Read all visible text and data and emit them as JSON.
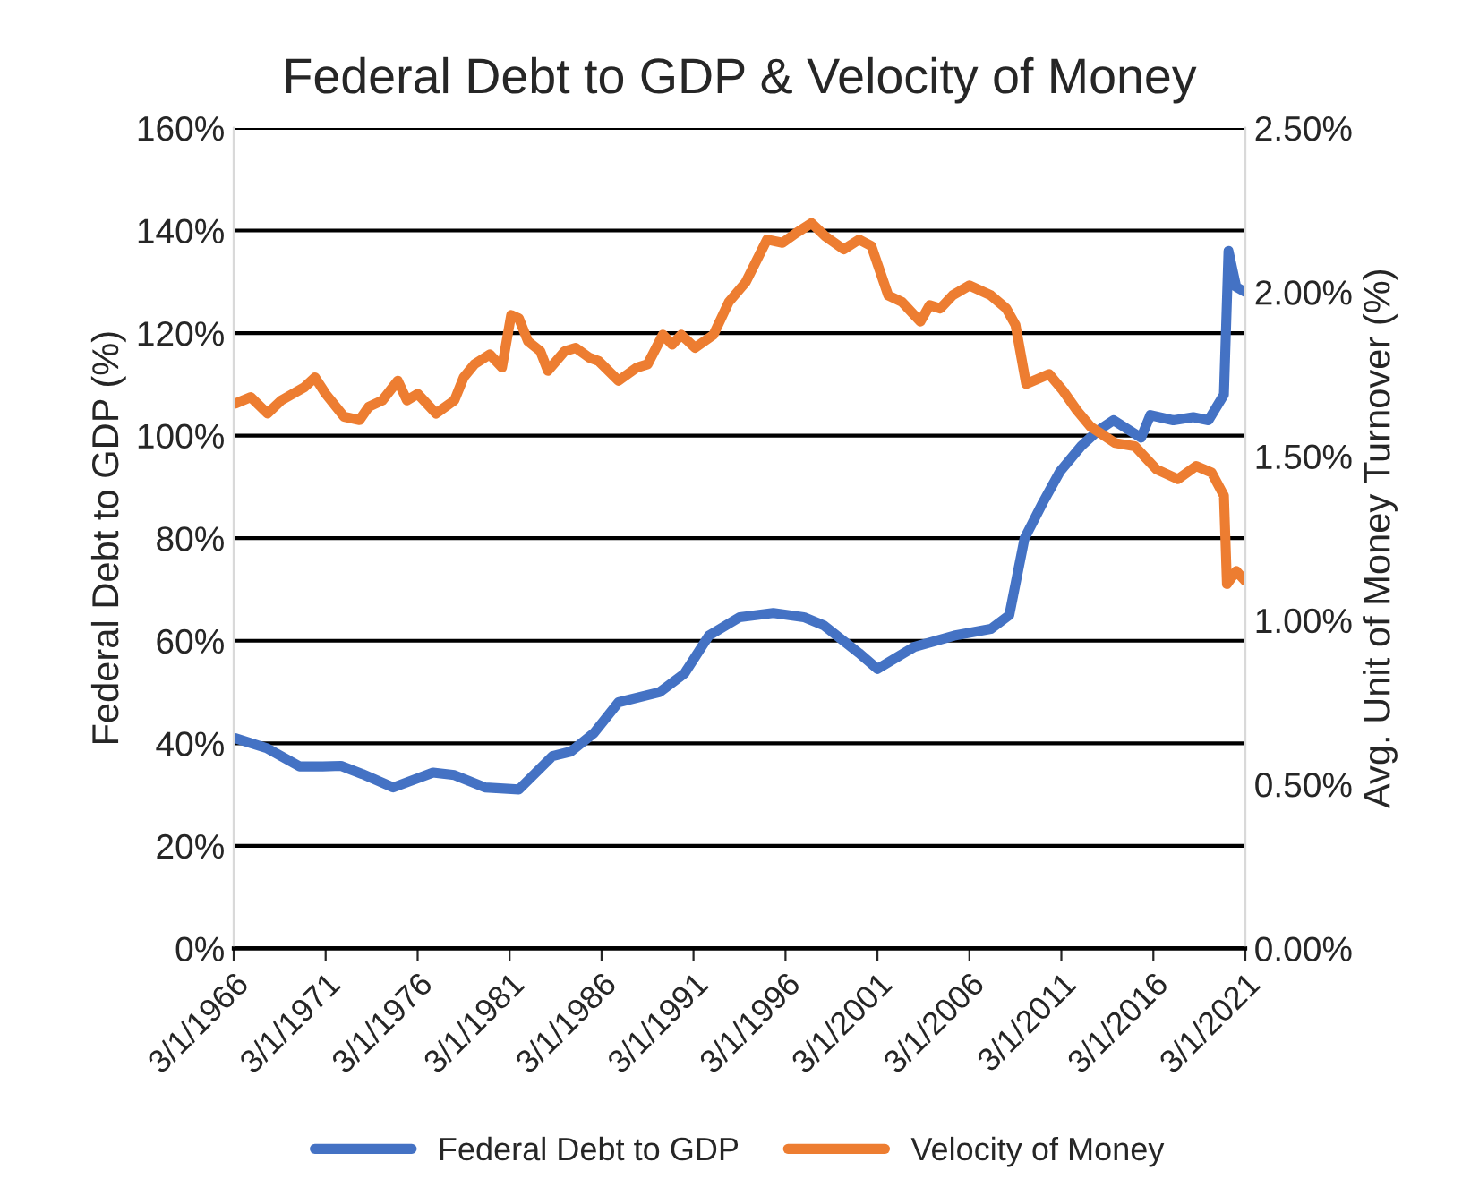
{
  "chart_data": {
    "type": "line",
    "title": "Federal Debt to GDP & Velocity of Money",
    "ylabel": "Federal Debt to GDP (%)",
    "y2label": "Avg. Unit of Money Turnover (%)",
    "xlim": [
      "1966-03-01",
      "2021-03-01"
    ],
    "xticks": [
      {
        "value": "1966-03-01",
        "label": "3/1/1966"
      },
      {
        "value": "1971-03-01",
        "label": "3/1/1971"
      },
      {
        "value": "1976-03-01",
        "label": "3/1/1976"
      },
      {
        "value": "1981-03-01",
        "label": "3/1/1981"
      },
      {
        "value": "1986-03-01",
        "label": "3/1/1986"
      },
      {
        "value": "1991-03-01",
        "label": "3/1/1991"
      },
      {
        "value": "1996-03-01",
        "label": "3/1/1996"
      },
      {
        "value": "2001-03-01",
        "label": "3/1/2001"
      },
      {
        "value": "2006-03-01",
        "label": "3/1/2006"
      },
      {
        "value": "2011-03-01",
        "label": "3/1/2011"
      },
      {
        "value": "2016-03-01",
        "label": "3/1/2016"
      },
      {
        "value": "2021-03-01",
        "label": "3/1/2021"
      }
    ],
    "ylim": [
      0,
      160
    ],
    "yticks": [
      {
        "value": 0,
        "label": "0%"
      },
      {
        "value": 20,
        "label": "20%"
      },
      {
        "value": 40,
        "label": "40%"
      },
      {
        "value": 60,
        "label": "60%"
      },
      {
        "value": 80,
        "label": "80%"
      },
      {
        "value": 100,
        "label": "100%"
      },
      {
        "value": 120,
        "label": "120%"
      },
      {
        "value": 140,
        "label": "140%"
      },
      {
        "value": 160,
        "label": "160%"
      }
    ],
    "y2lim": [
      0,
      2.5
    ],
    "y2ticks": [
      {
        "value": 0,
        "label": "0.00%"
      },
      {
        "value": 0.5,
        "label": "0.50%"
      },
      {
        "value": 1.0,
        "label": "1.00%"
      },
      {
        "value": 1.5,
        "label": "1.50%"
      },
      {
        "value": 2.0,
        "label": "2.00%"
      },
      {
        "value": 2.5,
        "label": "2.50%"
      }
    ],
    "grid": "y",
    "legend": "bottom",
    "marker": "none",
    "line_style": "solid",
    "series": [
      {
        "name": "Federal Debt to GDP",
        "color": "#4472c4",
        "x": [
          "1966-04",
          "1968-01",
          "1969-10",
          "1971-01",
          "1972-01",
          "1973-03",
          "1974-11",
          "1977-01",
          "1978-03",
          "1979-11",
          "1981-09",
          "1983-07",
          "1984-07",
          "1985-10",
          "1987-02",
          "1989-05",
          "1990-09",
          "1992-01",
          "1993-09",
          "1995-07",
          "1997-03",
          "1998-04",
          "2000-03",
          "2001-03",
          "2003-03",
          "2005-05",
          "2007-05",
          "2008-05",
          "2009-03",
          "2010-03",
          "2011-02",
          "2012-04",
          "2013-03",
          "2014-01",
          "2015-07",
          "2016-01",
          "2017-04",
          "2018-05",
          "2019-03",
          "2020-01",
          "2020-04",
          "2020-09",
          "2021-03"
        ],
        "values": [
          41,
          39,
          35.5,
          35.5,
          35.6,
          34,
          31.4,
          34.3,
          33.8,
          31.4,
          31,
          37.5,
          38.4,
          42,
          48,
          50,
          53.6,
          61,
          64.6,
          65.4,
          64.6,
          63,
          57.6,
          54.5,
          58.8,
          61,
          62.3,
          65,
          80,
          87,
          93,
          98,
          101,
          103,
          99.6,
          104,
          103,
          103.6,
          103,
          108,
          136,
          129,
          128
        ]
      },
      {
        "name": "Velocity of Money",
        "color": "#ed7d31",
        "axis": "y2",
        "x": [
          "1966-04",
          "1967-02",
          "1968-01",
          "1968-10",
          "1970-01",
          "1970-08",
          "1971-03",
          "1972-03",
          "1973-01",
          "1973-07",
          "1974-04",
          "1975-02",
          "1975-08",
          "1976-03",
          "1977-03",
          "1978-03",
          "1978-09",
          "1979-04",
          "1980-02",
          "1980-10",
          "1981-04",
          "1981-09",
          "1982-03",
          "1982-11",
          "1983-04",
          "1984-03",
          "1984-10",
          "1985-07",
          "1986-01",
          "1987-02",
          "1988-02",
          "1988-09",
          "1989-07",
          "1990-01",
          "1990-07",
          "1991-04",
          "1992-04",
          "1993-02",
          "1994-01",
          "1995-03",
          "1996-01",
          "1996-10",
          "1997-08",
          "1998-05",
          "1999-05",
          "2000-03",
          "2000-11",
          "2001-10",
          "2002-07",
          "2003-07",
          "2004-01",
          "2004-08",
          "2005-04",
          "2006-03",
          "2007-05",
          "2008-03",
          "2008-09",
          "2009-04",
          "2010-07",
          "2011-04",
          "2012-01",
          "2012-10",
          "2014-02",
          "2015-03",
          "2016-05",
          "2017-07",
          "2018-07",
          "2019-05",
          "2020-01",
          "2020-03",
          "2020-09",
          "2021-03"
        ],
        "values": [
          1.66,
          1.68,
          1.63,
          1.67,
          1.71,
          1.74,
          1.69,
          1.62,
          1.61,
          1.65,
          1.67,
          1.73,
          1.67,
          1.69,
          1.63,
          1.67,
          1.74,
          1.78,
          1.81,
          1.77,
          1.93,
          1.92,
          1.85,
          1.82,
          1.76,
          1.82,
          1.83,
          1.8,
          1.79,
          1.73,
          1.77,
          1.78,
          1.87,
          1.84,
          1.87,
          1.83,
          1.87,
          1.97,
          2.03,
          2.16,
          2.15,
          2.18,
          2.21,
          2.17,
          2.13,
          2.16,
          2.14,
          1.99,
          1.97,
          1.91,
          1.96,
          1.95,
          1.99,
          2.02,
          1.99,
          1.95,
          1.9,
          1.72,
          1.75,
          1.7,
          1.64,
          1.59,
          1.54,
          1.53,
          1.46,
          1.43,
          1.47,
          1.45,
          1.38,
          1.11,
          1.15,
          1.12
        ]
      }
    ]
  }
}
